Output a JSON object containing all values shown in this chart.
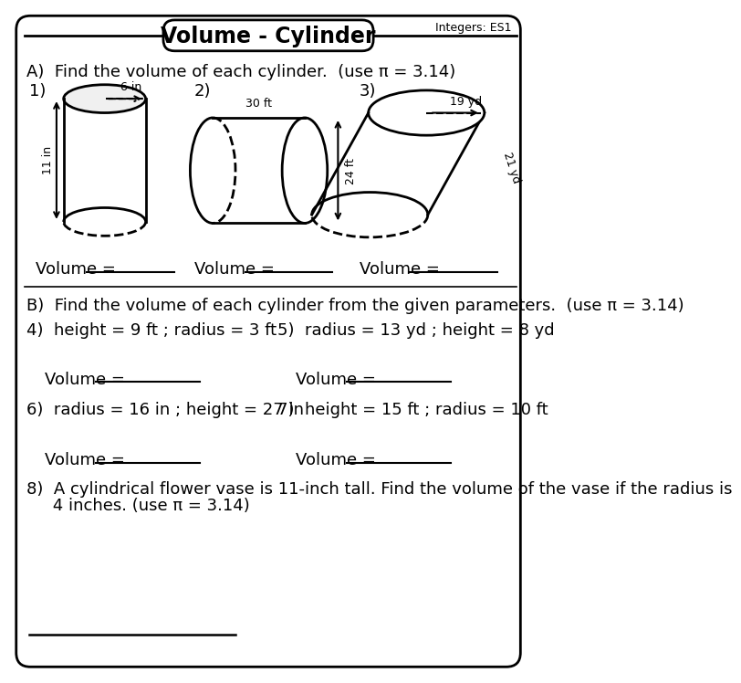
{
  "title": "Volume - Cylinder",
  "subtitle": "Integers: ES1",
  "bg_color": "#ffffff",
  "section_a_label": "A)  Find the volume of each cylinder.  (use π = 3.14)",
  "section_b_label": "B)  Find the volume of each cylinder from the given parameters.  (use π = 3.14)",
  "cyl1_radius": "6 in",
  "cyl1_height": "11 in",
  "cyl2_radius": "30 ft",
  "cyl2_height": "24 ft",
  "cyl3_radius": "19 yd",
  "cyl3_height": "21 yd",
  "p4": "4)  height = 9 ft ; radius = 3 ft",
  "p5": "5)  radius = 13 yd ; height = 8 yd",
  "p6": "6)  radius = 16 in ; height = 27 in",
  "p7": "7)  height = 15 ft ; radius = 10 ft",
  "p8_line1": "8)  A cylindrical flower vase is 11-inch tall. Find the volume of the vase if the radius is",
  "p8_line2": "     4 inches. (use π = 3.14)",
  "volume_label": "Volume = ",
  "num1": "1)",
  "num2": "2)",
  "num3": "3)",
  "text_color": "#000000",
  "fs_title": 17,
  "fs_body": 13,
  "fs_small": 9,
  "fs_num": 13
}
